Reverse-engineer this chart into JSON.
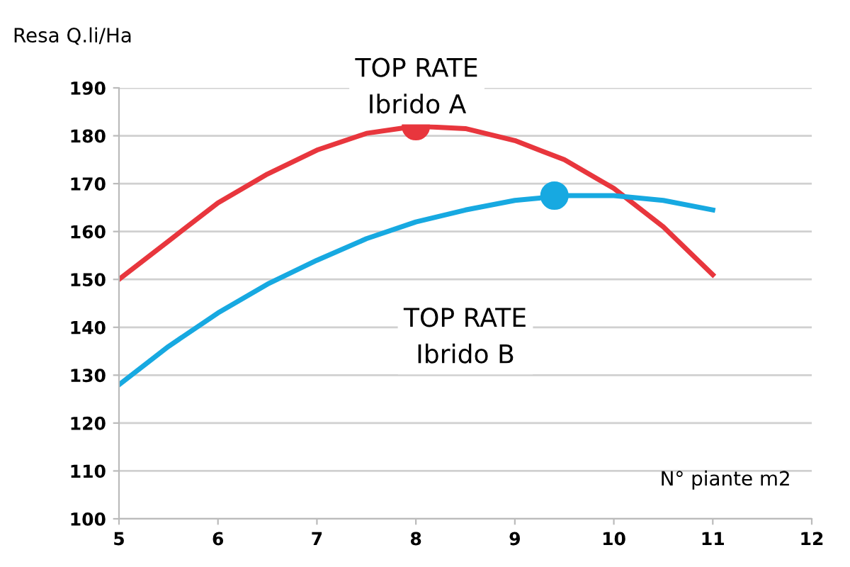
{
  "chart_data": {
    "type": "line",
    "xlabel": "N° piante m2",
    "ylabel": "Resa Q.li/Ha",
    "series": [
      {
        "color": "#e8363d",
        "x": [
          5,
          5.5,
          6,
          6.5,
          7,
          7.5,
          8,
          8.5,
          9,
          9.5,
          10,
          10.5,
          11
        ],
        "values": [
          150,
          158,
          166,
          172,
          177,
          180.5,
          182,
          181.5,
          179,
          175,
          169,
          161,
          151
        ]
      },
      {
        "color": "#17a9e1",
        "x": [
          5,
          5.5,
          6,
          6.5,
          7,
          7.5,
          8,
          8.5,
          9,
          9.5,
          10,
          10.5,
          11
        ],
        "values": [
          128,
          136,
          143,
          149,
          154,
          158.5,
          162,
          164.5,
          166.5,
          167.5,
          167.5,
          166.5,
          164.5
        ]
      },
      {
        "type": "scatter",
        "color": "#e8363d",
        "x": [
          8
        ],
        "values": [
          182
        ],
        "marker": "circle"
      },
      {
        "type": "scatter",
        "color": "#17a9e1",
        "x": [
          9.4
        ],
        "values": [
          167.5
        ],
        "marker": "circle"
      }
    ],
    "annotations": [
      "TOP RATE\nIbrido A",
      "TOP RATE\nIbrido B"
    ],
    "xlim": [
      5,
      12
    ],
    "xticks": [
      5,
      6,
      7,
      8,
      9,
      10,
      11,
      12
    ],
    "ylim": [
      100,
      190
    ],
    "yticks": [
      100,
      110,
      120,
      130,
      140,
      150,
      160,
      170,
      180,
      190
    ],
    "grid": "y",
    "legend": false
  }
}
